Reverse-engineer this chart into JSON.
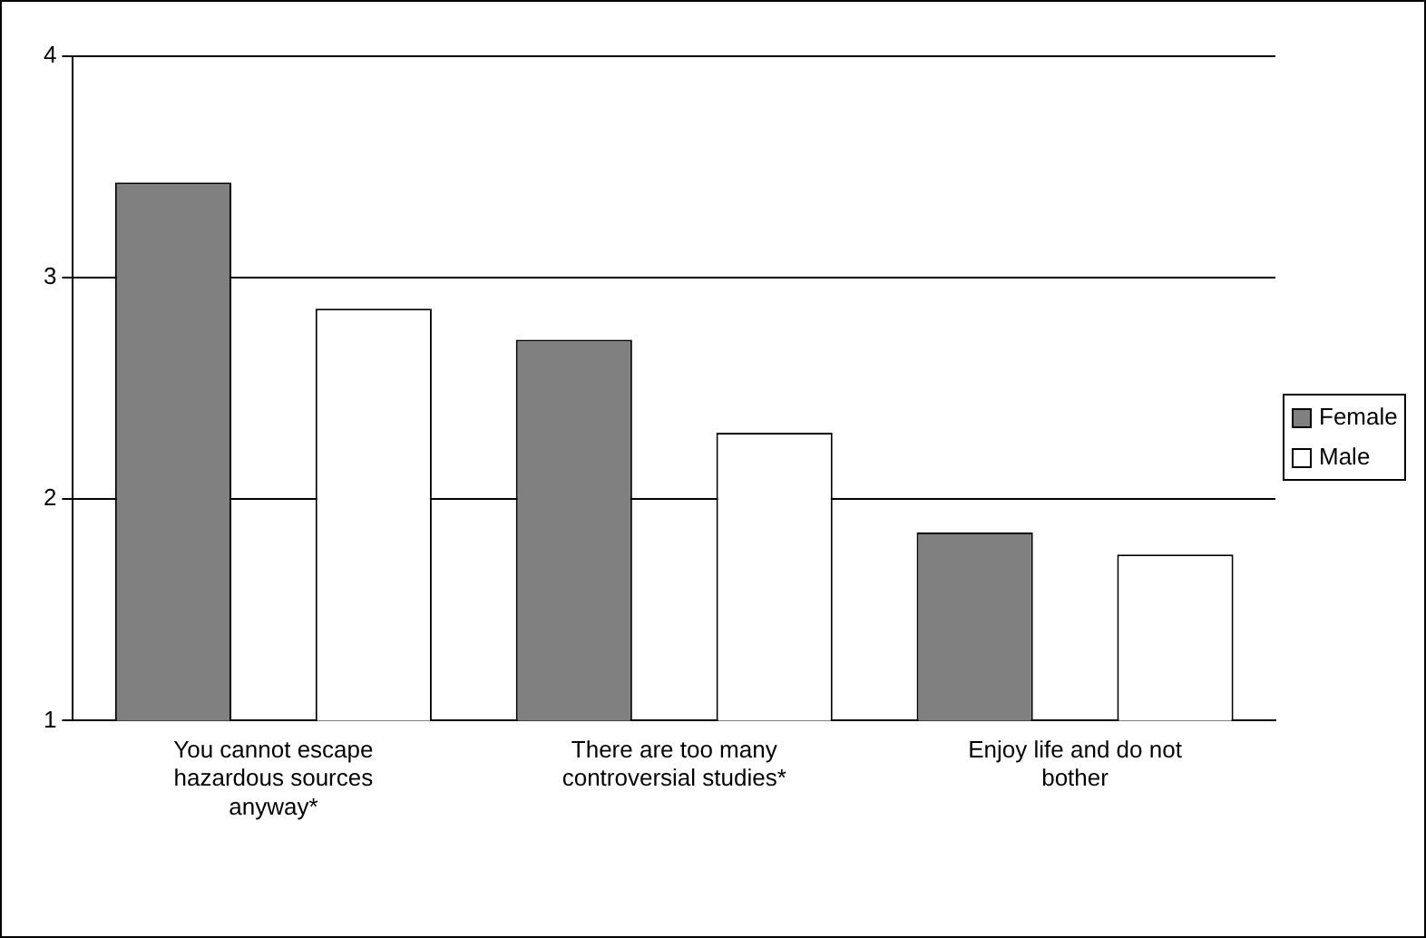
{
  "chart_data": {
    "type": "bar",
    "categories": [
      "You cannot escape hazardous sources anyway*",
      "There are too many controversial studies*",
      "Enjoy life and do not bother"
    ],
    "series": [
      {
        "name": "Female",
        "color": "#808080",
        "values": [
          3.43,
          2.72,
          1.85
        ]
      },
      {
        "name": "Male",
        "color": "#ffffff",
        "values": [
          2.86,
          2.3,
          1.75
        ]
      }
    ],
    "ylim": [
      1,
      4
    ],
    "yticks": [
      1,
      2,
      3,
      4
    ],
    "grid": "y",
    "legend": "right"
  }
}
